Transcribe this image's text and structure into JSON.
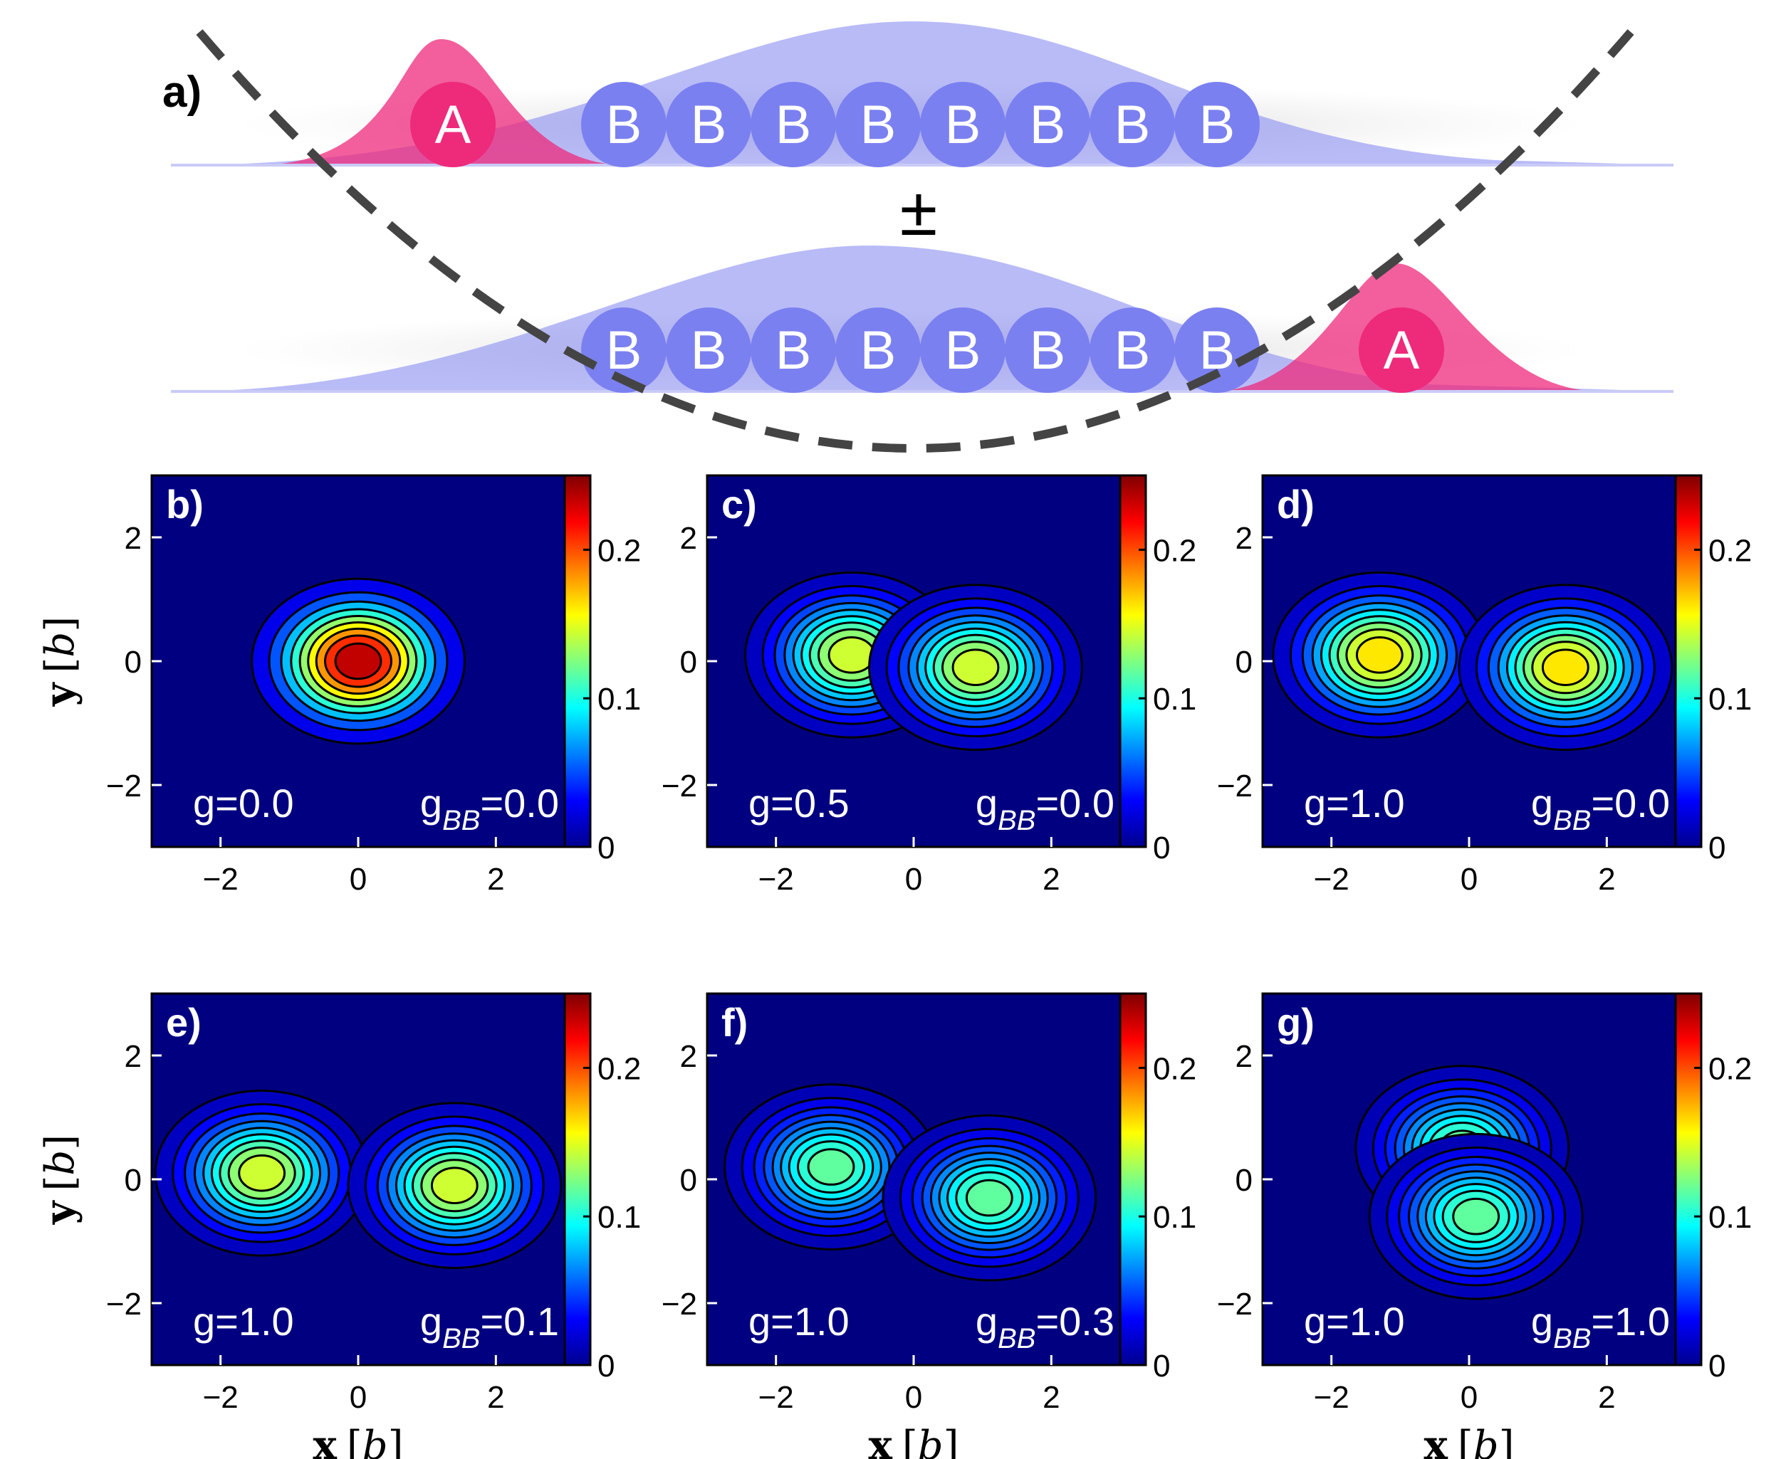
{
  "schematic": {
    "label": "a)",
    "atom_A": "A",
    "atom_B": "B",
    "pm": "±",
    "colors": {
      "A": "#ee2a7b",
      "B": "#8a8ef2",
      "trap": "#444444",
      "shadow": "#d8d8d8"
    }
  },
  "colorbar": {
    "ticks": [
      "0",
      "0.1",
      "0.2"
    ]
  },
  "axes": {
    "ticks": [
      "−2",
      "0",
      "2"
    ],
    "xlabel": {
      "main": "x",
      "unit": "b"
    },
    "ylabel": {
      "main": "y",
      "unit": "b"
    }
  },
  "chart_data": [
    {
      "type": "heatmap",
      "label": "b)",
      "g": "g=0.0",
      "gbb_main": "g",
      "gbb_sub": "BB",
      "gbb_val": "=0.0",
      "xlim": [
        -3,
        3
      ],
      "ylim": [
        -3,
        3
      ],
      "zlim": [
        0,
        0.25
      ],
      "peaks": [
        {
          "x": 0,
          "y": 0,
          "peak": 0.26
        }
      ]
    },
    {
      "type": "heatmap",
      "label": "c)",
      "g": "g=0.5",
      "gbb_main": "g",
      "gbb_sub": "BB",
      "gbb_val": "=0.0",
      "xlim": [
        -3,
        3
      ],
      "ylim": [
        -3,
        3
      ],
      "zlim": [
        0,
        0.25
      ],
      "peaks": [
        {
          "x": -0.9,
          "y": 0.1,
          "peak": 0.16
        },
        {
          "x": 0.9,
          "y": -0.1,
          "peak": 0.16
        }
      ]
    },
    {
      "type": "heatmap",
      "label": "d)",
      "g": "g=1.0",
      "gbb_main": "g",
      "gbb_sub": "BB",
      "gbb_val": "=0.0",
      "xlim": [
        -3,
        3
      ],
      "ylim": [
        -3,
        3
      ],
      "zlim": [
        0,
        0.25
      ],
      "peaks": [
        {
          "x": -1.3,
          "y": 0.1,
          "peak": 0.18
        },
        {
          "x": 1.4,
          "y": -0.1,
          "peak": 0.18
        }
      ]
    },
    {
      "type": "heatmap",
      "label": "e)",
      "g": "g=1.0",
      "gbb_main": "g",
      "gbb_sub": "BB",
      "gbb_val": "=0.1",
      "xlim": [
        -3,
        3
      ],
      "ylim": [
        -3,
        3
      ],
      "zlim": [
        0,
        0.25
      ],
      "peaks": [
        {
          "x": -1.4,
          "y": 0.1,
          "peak": 0.16
        },
        {
          "x": 1.4,
          "y": -0.1,
          "peak": 0.16
        }
      ]
    },
    {
      "type": "heatmap",
      "label": "f)",
      "g": "g=1.0",
      "gbb_main": "g",
      "gbb_sub": "BB",
      "gbb_val": "=0.3",
      "xlim": [
        -3,
        3
      ],
      "ylim": [
        -3,
        3
      ],
      "zlim": [
        0,
        0.25
      ],
      "peaks": [
        {
          "x": -1.2,
          "y": 0.2,
          "peak": 0.13
        },
        {
          "x": 1.1,
          "y": -0.3,
          "peak": 0.13
        }
      ]
    },
    {
      "type": "heatmap",
      "label": "g)",
      "g": "g=1.0",
      "gbb_main": "g",
      "gbb_sub": "BB",
      "gbb_val": "=1.0",
      "xlim": [
        -3,
        3
      ],
      "ylim": [
        -3,
        3
      ],
      "zlim": [
        0,
        0.25
      ],
      "peaks": [
        {
          "x": -0.1,
          "y": 0.5,
          "peak": 0.13
        },
        {
          "x": 0.1,
          "y": -0.6,
          "peak": 0.13
        }
      ]
    }
  ]
}
